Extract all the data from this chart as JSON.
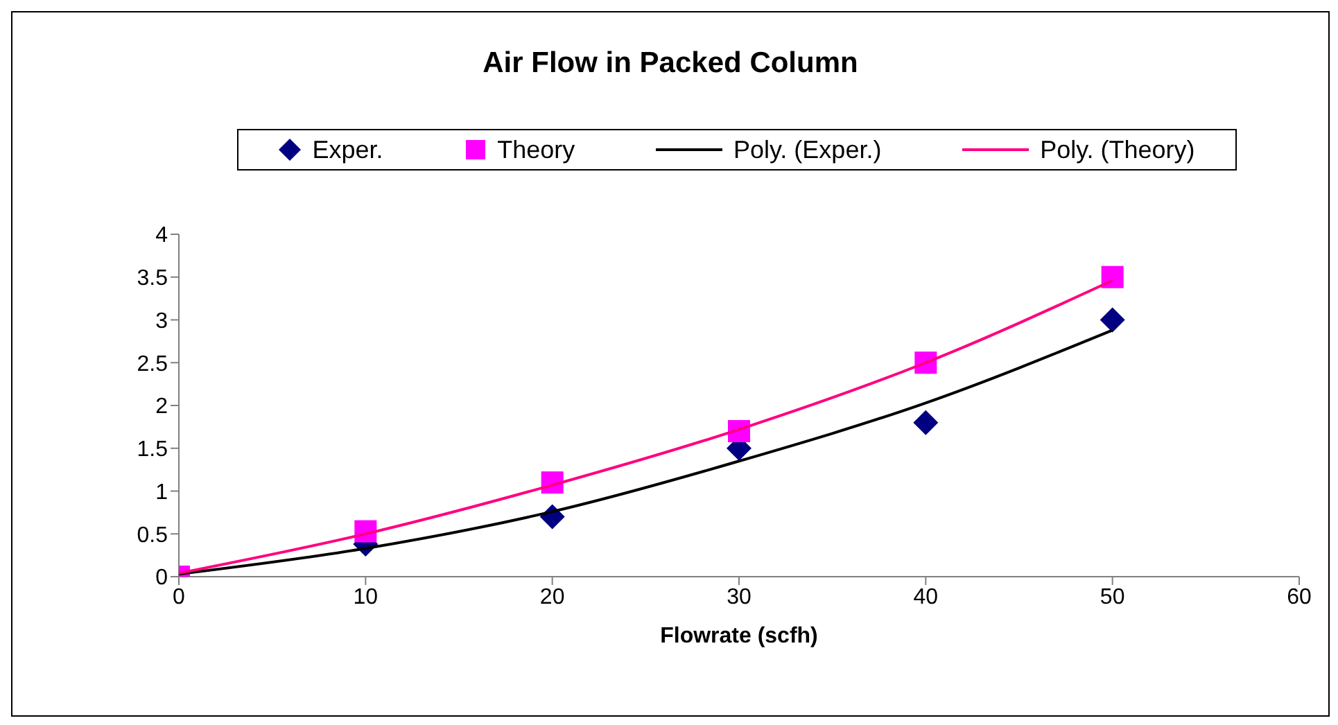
{
  "chart_data": {
    "type": "scatter",
    "title": "Air Flow in Packed Column",
    "xlabel": "Flowrate (scfh)",
    "xlim": [
      0,
      60
    ],
    "xticks": [
      0,
      10,
      20,
      30,
      40,
      50,
      60
    ],
    "ylim": [
      0,
      4
    ],
    "yticks": [
      0,
      0.5,
      1,
      1.5,
      2,
      2.5,
      3,
      3.5,
      4
    ],
    "grid": false,
    "legend": "top",
    "series": [
      {
        "name": "Exper.",
        "marker": "diamond",
        "color": "#000080",
        "x": [
          10,
          20,
          30,
          40,
          50
        ],
        "values": [
          0.38,
          0.7,
          1.5,
          1.8,
          3
        ]
      },
      {
        "name": "Theory",
        "marker": "square",
        "color": "#ff00ff",
        "x": [
          0,
          10,
          20,
          30,
          40,
          50
        ],
        "values": [
          0,
          0.53,
          1.1,
          1.7,
          2.5,
          3.5
        ]
      },
      {
        "name": "Poly. (Exper.)",
        "type": "line",
        "marker": "none",
        "line_style": "solid",
        "color": "#000000",
        "x": [
          0,
          10,
          20,
          30,
          40,
          50
        ],
        "values": [
          0.03,
          0.33,
          0.76,
          1.35,
          2.03,
          2.88
        ]
      },
      {
        "name": "Poly. (Theory)",
        "type": "line",
        "marker": "none",
        "line_style": "solid",
        "color": "#ff0080",
        "x": [
          0,
          10,
          20,
          30,
          40,
          50
        ],
        "values": [
          0.04,
          0.5,
          1.07,
          1.72,
          2.5,
          3.46
        ]
      }
    ]
  }
}
